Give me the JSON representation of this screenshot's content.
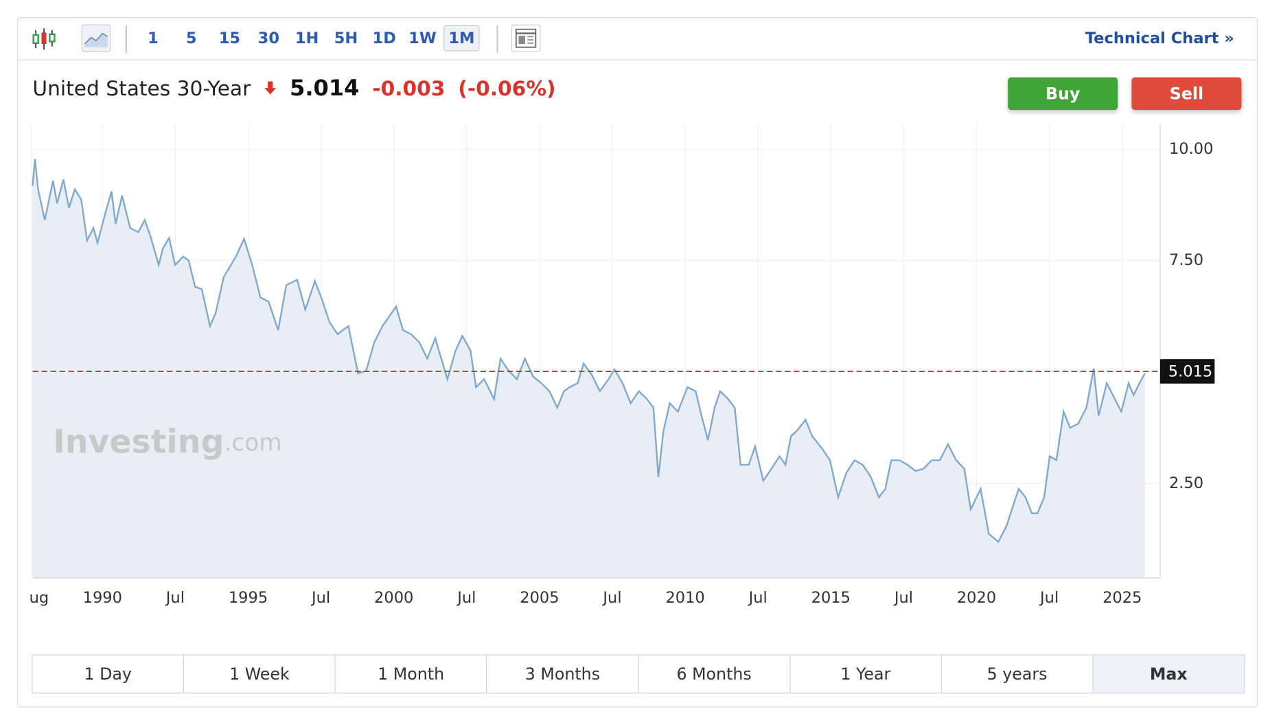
{
  "toolbar": {
    "intervals": [
      "1",
      "5",
      "15",
      "30",
      "1H",
      "5H",
      "1D",
      "1W",
      "1M"
    ],
    "selected_interval": "1M",
    "technical_chart": "Technical Chart »"
  },
  "header": {
    "name": "United States 30-Year",
    "price": "5.014",
    "change": "-0.003",
    "change_percent": "(-0.06%)"
  },
  "buttons": {
    "buy": "Buy",
    "sell": "Sell"
  },
  "watermark": {
    "brand": "Investing",
    "suffix": ".com"
  },
  "chart_data": {
    "type": "area",
    "color": "#7fa8d1",
    "fill": "#e9eef6",
    "grid": true,
    "x": [
      1987.6,
      1987.68,
      1987.79,
      1988.02,
      1988.3,
      1988.44,
      1988.66,
      1988.85,
      1989.05,
      1989.27,
      1989.47,
      1989.69,
      1989.83,
      1990.11,
      1990.31,
      1990.45,
      1990.67,
      1990.95,
      1991.23,
      1991.45,
      1991.65,
      1991.93,
      1992.07,
      1992.29,
      1992.49,
      1992.77,
      1992.96,
      1993.18,
      1993.41,
      1993.69,
      1993.88,
      1994.16,
      1994.58,
      1994.86,
      1995.14,
      1995.42,
      1995.7,
      1996.03,
      1996.31,
      1996.68,
      1996.96,
      1997.29,
      1997.51,
      1997.79,
      1998.07,
      1998.44,
      1998.77,
      1999.05,
      1999.33,
      1999.61,
      2000.08,
      2000.31,
      2000.59,
      2000.87,
      2001.15,
      2001.42,
      2001.84,
      2002.12,
      2002.35,
      2002.63,
      2002.82,
      2003.1,
      2003.44,
      2003.66,
      2003.94,
      2004.22,
      2004.5,
      2004.78,
      2005.06,
      2005.34,
      2005.61,
      2005.84,
      2006.03,
      2006.31,
      2006.51,
      2006.79,
      2007.07,
      2007.37,
      2007.57,
      2007.85,
      2008.13,
      2008.41,
      2008.69,
      2008.91,
      2009.08,
      2009.25,
      2009.47,
      2009.75,
      2010.08,
      2010.36,
      2010.56,
      2010.78,
      2011.01,
      2011.2,
      2011.48,
      2011.7,
      2011.9,
      2012.18,
      2012.4,
      2012.68,
      2012.96,
      2013.24,
      2013.44,
      2013.63,
      2013.85,
      2014.13,
      2014.36,
      2014.69,
      2014.97,
      2015.25,
      2015.53,
      2015.81,
      2016.09,
      2016.37,
      2016.65,
      2016.87,
      2017.07,
      2017.35,
      2017.63,
      2017.91,
      2018.18,
      2018.46,
      2018.74,
      2019.02,
      2019.3,
      2019.58,
      2019.8,
      2020.14,
      2020.42,
      2020.75,
      2021.03,
      2021.26,
      2021.45,
      2021.68,
      2021.9,
      2022.09,
      2022.32,
      2022.51,
      2022.74,
      2022.99,
      2023.21,
      2023.49,
      2023.77,
      2024.02,
      2024.19,
      2024.47,
      2024.75,
      2024.97,
      2025.22,
      2025.39,
      2025.59,
      2025.78
    ],
    "values": [
      9.18,
      9.78,
      9.1,
      8.41,
      9.29,
      8.78,
      9.32,
      8.68,
      9.1,
      8.87,
      7.95,
      8.23,
      7.9,
      8.59,
      9.05,
      8.32,
      8.96,
      8.23,
      8.14,
      8.41,
      8.04,
      7.4,
      7.77,
      8.01,
      7.4,
      7.59,
      7.5,
      6.91,
      6.86,
      6.03,
      6.31,
      7.13,
      7.59,
      7.99,
      7.4,
      6.67,
      6.58,
      5.94,
      6.95,
      7.07,
      6.4,
      7.04,
      6.67,
      6.12,
      5.85,
      6.03,
      4.97,
      5.03,
      5.67,
      6.03,
      6.47,
      5.94,
      5.85,
      5.67,
      5.3,
      5.76,
      4.84,
      5.48,
      5.81,
      5.48,
      4.66,
      4.84,
      4.39,
      5.3,
      5.03,
      4.84,
      5.3,
      4.9,
      4.75,
      4.57,
      4.2,
      4.57,
      4.66,
      4.75,
      5.19,
      4.94,
      4.57,
      4.84,
      5.06,
      4.75,
      4.3,
      4.57,
      4.39,
      4.2,
      2.65,
      3.66,
      4.3,
      4.11,
      4.66,
      4.57,
      4.02,
      3.47,
      4.2,
      4.57,
      4.39,
      4.2,
      2.92,
      2.92,
      3.33,
      2.56,
      2.83,
      3.11,
      2.92,
      3.56,
      3.69,
      3.93,
      3.56,
      3.29,
      3.02,
      2.19,
      2.74,
      3.02,
      2.92,
      2.65,
      2.19,
      2.38,
      3.02,
      3.02,
      2.92,
      2.78,
      2.83,
      3.02,
      3.02,
      3.38,
      3.02,
      2.83,
      1.92,
      2.38,
      1.37,
      1.19,
      1.55,
      2.01,
      2.38,
      2.19,
      1.83,
      1.83,
      2.19,
      3.11,
      3.02,
      4.11,
      3.75,
      3.84,
      4.2,
      5.08,
      4.02,
      4.75,
      4.39,
      4.11,
      4.75,
      4.48,
      4.75,
      4.97
    ],
    "last_value": 5.015,
    "xlim": [
      1987.6,
      2026.3
    ],
    "xticks": [
      {
        "value": 1987.58,
        "label": "ug"
      },
      1990,
      {
        "value": 1992.5,
        "label": "Jul"
      },
      1995,
      {
        "value": 1997.5,
        "label": "Jul"
      },
      2000,
      {
        "value": 2002.5,
        "label": "Jul"
      },
      2005,
      {
        "value": 2007.5,
        "label": "Jul"
      },
      2010,
      {
        "value": 2012.5,
        "label": "Jul"
      },
      2015,
      {
        "value": 2017.5,
        "label": "Jul"
      },
      2020,
      {
        "value": 2022.5,
        "label": "Jul"
      },
      2025
    ],
    "ylim": [
      0.38,
      10.57
    ],
    "yticks": [
      {
        "value": 2.5,
        "label": "2.50"
      },
      {
        "value": 7.5,
        "label": "7.50"
      },
      {
        "value": 10,
        "label": "10.00"
      }
    ]
  },
  "ranges": {
    "options": [
      "1 Day",
      "1 Week",
      "1 Month",
      "3 Months",
      "6 Months",
      "1 Year",
      "5 years",
      "Max"
    ],
    "selected": "Max"
  }
}
